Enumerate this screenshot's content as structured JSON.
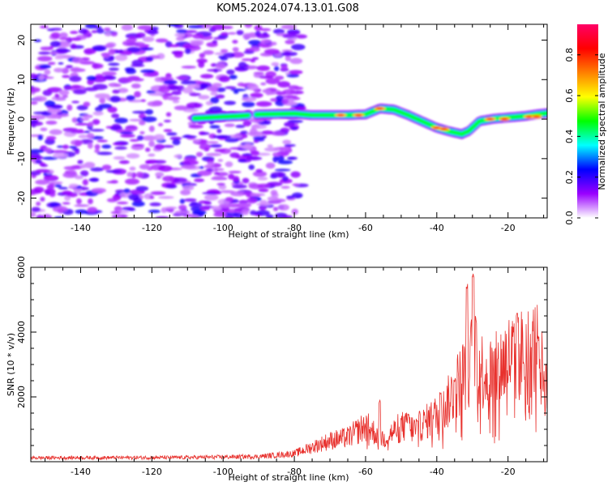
{
  "title": "KOM5.2024.074.13.01.G08",
  "chart_data": [
    {
      "type": "heatmap",
      "xlabel": "Height of straight line (km)",
      "ylabel": "Frequency (Hz)",
      "xlim": [
        -154,
        -9
      ],
      "ylim": [
        -25,
        24
      ],
      "xticks": [
        -140,
        -120,
        -100,
        -80,
        -60,
        -40,
        -20
      ],
      "yticks": [
        -20,
        -10,
        0,
        10,
        20
      ],
      "noise_region_x": [
        -154,
        -78
      ],
      "ridge": [
        [
          -108,
          0.2
        ],
        [
          -100,
          0.6
        ],
        [
          -95,
          0.8
        ],
        [
          -90,
          1.2
        ],
        [
          -85,
          1.3
        ],
        [
          -80,
          1.4
        ],
        [
          -75,
          1.0
        ],
        [
          -70,
          1.0
        ],
        [
          -65,
          1.0
        ],
        [
          -60,
          1.2
        ],
        [
          -56,
          2.7
        ],
        [
          -52,
          2.4
        ],
        [
          -48,
          1.0
        ],
        [
          -44,
          -0.6
        ],
        [
          -40,
          -2.2
        ],
        [
          -36,
          -3.2
        ],
        [
          -33,
          -3.8
        ],
        [
          -31,
          -3.0
        ],
        [
          -28,
          -0.5
        ],
        [
          -24,
          0.1
        ],
        [
          -20,
          0.4
        ],
        [
          -15,
          0.8
        ],
        [
          -12,
          1.2
        ],
        [
          -9,
          1.5
        ]
      ],
      "hotspots": [
        [
          -67,
          1.0
        ],
        [
          -62,
          1.0
        ],
        [
          -56,
          2.7
        ],
        [
          -40,
          -2.2
        ],
        [
          -38,
          -2.5
        ],
        [
          -25,
          0.0
        ],
        [
          -21,
          0.0
        ],
        [
          -14,
          0.6
        ],
        [
          -12,
          0.6
        ]
      ],
      "colorbar": {
        "label": "Normalized spectral amplitude",
        "ticks": [
          "0.0",
          "0.2",
          "0.4",
          "0.6",
          "0.8"
        ],
        "range": [
          0.0,
          0.95
        ],
        "colors": [
          "#ffffff",
          "#9900ff",
          "#0000ff",
          "#00ffff",
          "#00ff00",
          "#ffff00",
          "#ff8000",
          "#ff0000",
          "#ff0066"
        ]
      }
    },
    {
      "type": "line",
      "xlabel": "Height of straight line (km)",
      "ylabel": "SNR (10 * v/v)",
      "xlim": [
        -154,
        -9
      ],
      "ylim": [
        0,
        6000
      ],
      "xticks": [
        -140,
        -120,
        -100,
        -80,
        -60,
        -40,
        -20
      ],
      "yticks": [
        2000,
        4000,
        6000
      ],
      "color": "#e8312d",
      "envelope": [
        [
          -154,
          120
        ],
        [
          -110,
          130
        ],
        [
          -90,
          160
        ],
        [
          -80,
          250
        ],
        [
          -75,
          450
        ],
        [
          -70,
          650
        ],
        [
          -65,
          750
        ],
        [
          -60,
          1100
        ],
        [
          -55,
          700
        ],
        [
          -50,
          1100
        ],
        [
          -46,
          1000
        ],
        [
          -42,
          1300
        ],
        [
          -38,
          1600
        ],
        [
          -35,
          2200
        ],
        [
          -32,
          2800
        ],
        [
          -30,
          3200
        ],
        [
          -27,
          2800
        ],
        [
          -24,
          2700
        ],
        [
          -20,
          3200
        ],
        [
          -16,
          3300
        ],
        [
          -12,
          3500
        ],
        [
          -9,
          2200
        ]
      ],
      "spikes": [
        [
          -31.5,
          5500
        ],
        [
          -29.8,
          6000
        ],
        [
          -29.0,
          4500
        ],
        [
          -17.5,
          4700
        ],
        [
          -11.5,
          3900
        ],
        [
          -56,
          1900
        ],
        [
          -48,
          1500
        ],
        [
          -39,
          2200
        ],
        [
          -35,
          2600
        ]
      ]
    }
  ]
}
